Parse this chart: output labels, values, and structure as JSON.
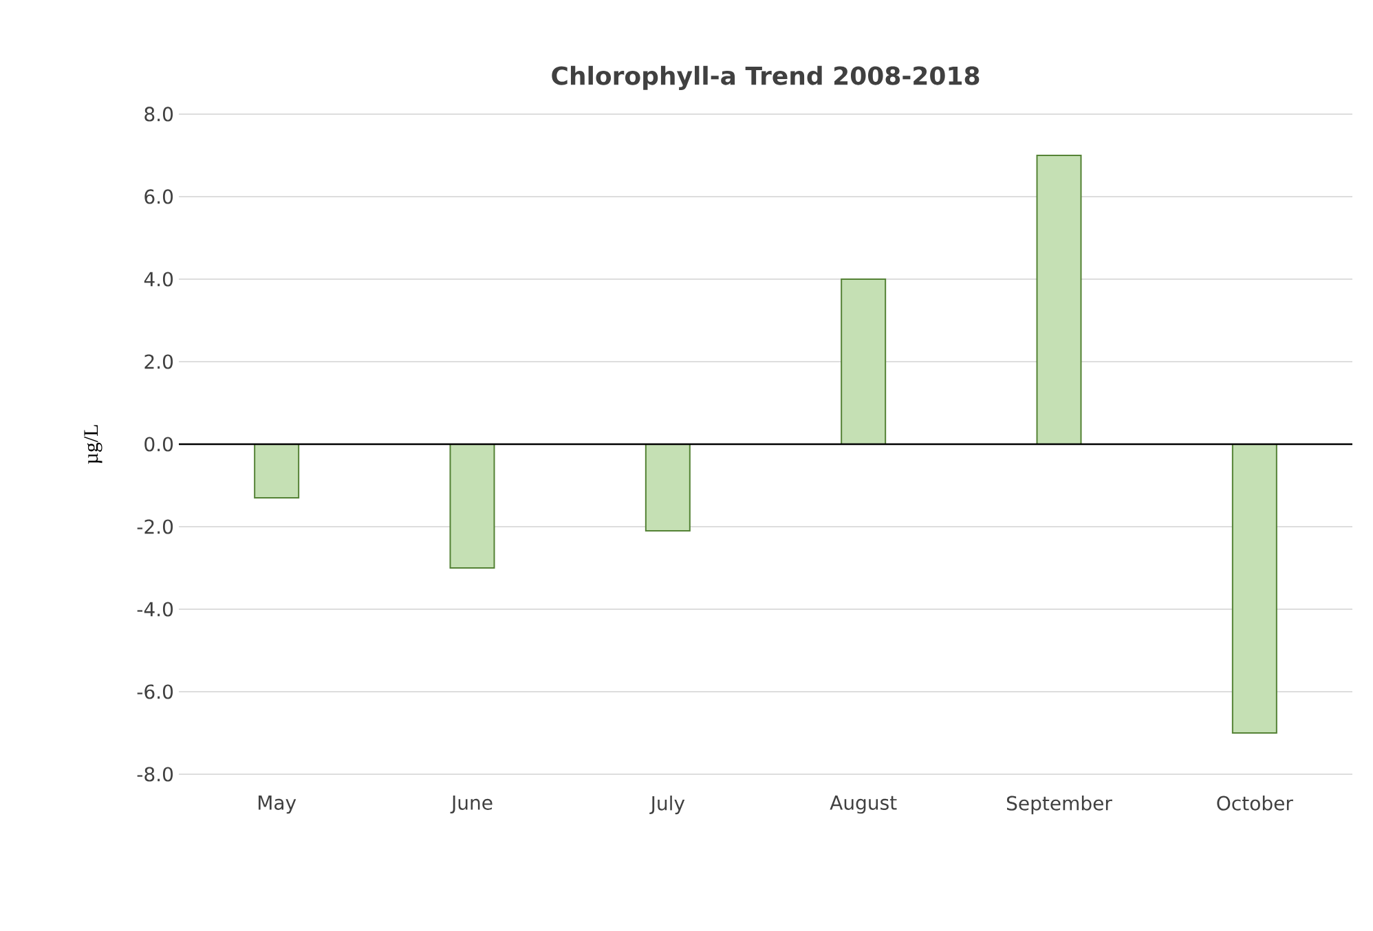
{
  "chart_data": {
    "type": "bar",
    "title": "Chlorophyll-a Trend 2008-2018",
    "ylabel": "µg/L",
    "categories": [
      "May",
      "June",
      "July",
      "August",
      "September",
      "October"
    ],
    "values": [
      -1.3,
      -3.0,
      -2.1,
      4.0,
      7.0,
      -7.0
    ],
    "color": "#c5e0b4",
    "ylim": [
      -8,
      8
    ],
    "yticks": [
      {
        "value": -8,
        "label": "-8.0"
      },
      {
        "value": -6,
        "label": "-6.0"
      },
      {
        "value": -4,
        "label": "-4.0"
      },
      {
        "value": -2,
        "label": "-2.0"
      },
      {
        "value": 0,
        "label": "0.0"
      },
      {
        "value": 2,
        "label": "2.0"
      },
      {
        "value": 4,
        "label": "4.0"
      },
      {
        "value": 6,
        "label": "6.0"
      },
      {
        "value": 8,
        "label": "8.0"
      }
    ],
    "grid": "y"
  }
}
